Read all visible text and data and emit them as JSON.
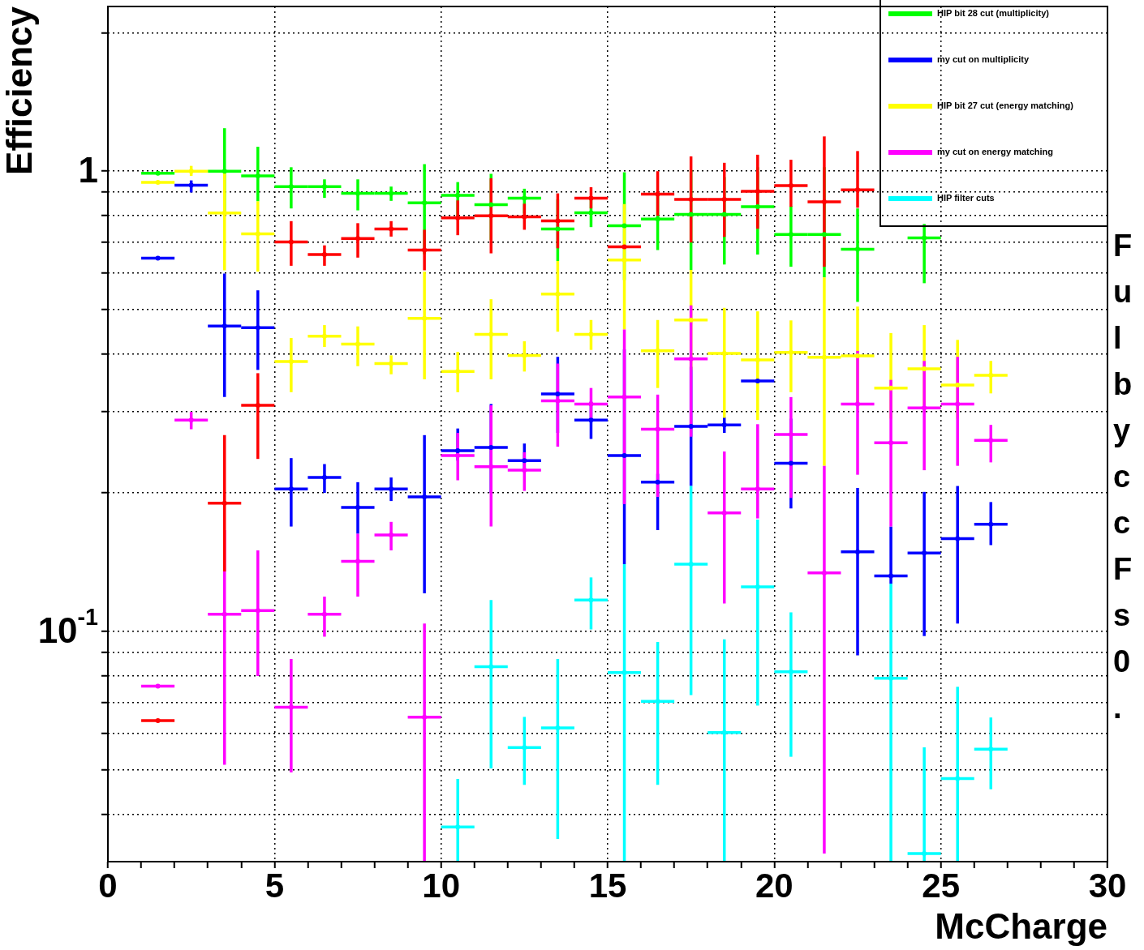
{
  "chart_data": {
    "type": "scatter",
    "xlabel": "McCharge",
    "ylabel": "Efficiency",
    "x": [
      1.5,
      2.5,
      3.5,
      4.5,
      5.5,
      6.5,
      7.5,
      8.5,
      9.5,
      10.5,
      11.5,
      12.5,
      13.5,
      14.5,
      15.5,
      16.5,
      17.5,
      18.5,
      19.5,
      20.5,
      21.5,
      22.5,
      23.5,
      24.5,
      25.5,
      26.5
    ],
    "series": [
      {
        "name": "HIP bit 28 cut (multiplicity)",
        "color": "#00ff00",
        "values": [
          0.99,
          null,
          1.0,
          0.977,
          0.926,
          0.926,
          0.895,
          0.895,
          0.854,
          0.886,
          0.846,
          0.874,
          0.749,
          0.812,
          0.761,
          0.787,
          0.806,
          0.806,
          0.837,
          0.729,
          0.729,
          0.677,
          null,
          0.716,
          null,
          null
        ],
        "errors": [
          null,
          null,
          [
            0.81,
            1.24
          ],
          [
            0.86,
            1.13
          ],
          [
            0.83,
            1.02
          ],
          [
            0.875,
            0.96
          ],
          [
            0.822,
            0.96
          ],
          [
            0.862,
            0.926
          ],
          [
            0.66,
            1.036
          ],
          [
            0.798,
            0.947
          ],
          [
            0.708,
            0.987
          ],
          [
            0.809,
            0.916
          ],
          [
            0.638,
            0.868
          ],
          [
            0.756,
            0.865
          ],
          [
            0.58,
            0.995
          ],
          [
            0.674,
            0.889
          ],
          [
            0.61,
            1.007
          ],
          [
            0.627,
            0.971
          ],
          [
            0.659,
            1.02
          ],
          [
            0.62,
            0.84
          ],
          [
            0.588,
            1.02
          ],
          [
            0.52,
            0.83
          ],
          null,
          [
            0.571,
            0.768
          ],
          null,
          null
        ],
        "xerrors": [
          0.5,
          null,
          0.5,
          0.5,
          0.5,
          0.5,
          0.5,
          0.5,
          0.5,
          0.5,
          0.5,
          0.5,
          0.5,
          0.5,
          0.5,
          0.5,
          0.5,
          0.5,
          0.5,
          0.5,
          0.5,
          0.5,
          null,
          0.5,
          null,
          null
        ]
      },
      {
        "name": "my cut on multiplicity",
        "color": "#0000ff",
        "values": [
          0.647,
          0.932,
          0.461,
          0.457,
          0.204,
          0.216,
          0.186,
          0.204,
          0.196,
          0.247,
          0.251,
          0.235,
          0.328,
          0.288,
          0.241,
          0.211,
          0.279,
          0.281,
          0.35,
          0.232,
          null,
          0.149,
          0.132,
          0.148,
          0.159,
          0.171
        ],
        "errors": [
          null,
          [
            0.899,
            0.955
          ],
          [
            0.323,
            0.599
          ],
          [
            0.37,
            0.551
          ],
          [
            0.169,
            0.238
          ],
          [
            0.2,
            0.231
          ],
          [
            0.163,
            0.211
          ],
          [
            0.192,
            0.216
          ],
          [
            0.121,
            0.267
          ],
          [
            0.235,
            0.276
          ],
          [
            0.2,
            0.312
          ],
          [
            0.226,
            0.256
          ],
          [
            0.27,
            0.395
          ],
          [
            0.262,
            0.316
          ],
          [
            0.14,
            0.41
          ],
          [
            0.166,
            0.22
          ],
          [
            0.207,
            0.376
          ],
          [
            0.27,
            0.292
          ],
          null,
          [
            0.185,
            0.29
          ],
          null,
          [
            0.0887,
            0.205
          ],
          [
            0.127,
            0.169
          ],
          [
            0.0977,
            0.201
          ],
          [
            0.104,
            0.207
          ],
          [
            0.154,
            0.191
          ]
        ],
        "xerrors": [
          0.5,
          0.5,
          0.5,
          0.5,
          0.5,
          0.5,
          0.5,
          0.5,
          0.5,
          0.5,
          0.5,
          0.5,
          0.5,
          0.5,
          0.5,
          0.5,
          0.5,
          0.5,
          0.5,
          0.5,
          null,
          0.5,
          0.5,
          0.5,
          0.5,
          0.5
        ]
      },
      {
        "name": "HIP bit 27 cut (energy matching)",
        "color": "#ffff00",
        "values": [
          0.946,
          1.0,
          0.811,
          0.731,
          0.386,
          0.438,
          0.421,
          0.382,
          0.479,
          0.367,
          0.442,
          0.398,
          0.541,
          0.442,
          0.641,
          0.407,
          0.475,
          0.402,
          0.389,
          0.404,
          0.394,
          0.397,
          0.338,
          0.372,
          0.343,
          0.36
        ],
        "errors": [
          null,
          [
            0.977,
            1.027
          ],
          [
            0.609,
            1.004
          ],
          [
            0.605,
            0.86
          ],
          [
            0.331,
            0.434
          ],
          [
            0.415,
            0.463
          ],
          [
            0.377,
            0.46
          ],
          [
            0.362,
            0.398
          ],
          [
            0.353,
            0.605
          ],
          [
            0.331,
            0.405
          ],
          [
            0.353,
            0.527
          ],
          [
            0.367,
            0.427
          ],
          [
            0.448,
            0.638
          ],
          [
            0.409,
            0.475
          ],
          [
            0.453,
            0.848
          ],
          [
            0.338,
            0.475
          ],
          [
            0.37,
            0.61
          ],
          [
            0.291,
            0.505
          ],
          [
            0.288,
            0.496
          ],
          [
            0.331,
            0.474
          ],
          [
            0.229,
            0.588
          ],
          [
            0.31,
            0.508
          ],
          [
            0.29,
            0.445
          ],
          [
            0.31,
            0.463
          ],
          [
            0.29,
            0.43
          ],
          [
            0.329,
            0.387
          ]
        ],
        "xerrors": [
          0.5,
          0.5,
          0.5,
          0.5,
          0.5,
          0.5,
          0.5,
          0.5,
          0.5,
          0.5,
          0.5,
          0.5,
          0.5,
          0.5,
          0.5,
          0.5,
          0.5,
          0.5,
          0.5,
          0.5,
          0.5,
          0.5,
          0.5,
          0.5,
          0.5,
          0.5
        ]
      },
      {
        "name": "my cut on energy matching",
        "color": "#ff00ff",
        "values": [
          0.076,
          0.288,
          0.109,
          0.111,
          0.0684,
          0.109,
          0.142,
          0.162,
          0.0651,
          0.241,
          0.228,
          0.224,
          0.317,
          0.312,
          0.323,
          0.275,
          0.391,
          0.181,
          0.204,
          0.268,
          0.134,
          0.312,
          0.257,
          0.306,
          0.312,
          0.26
        ],
        "errors": [
          null,
          [
            0.275,
            0.3
          ],
          [
            0.0513,
            0.166
          ],
          [
            0.08,
            0.15
          ],
          [
            0.0494,
            0.0871
          ],
          [
            0.0974,
            0.119
          ],
          [
            0.119,
            0.163
          ],
          [
            0.15,
            0.173
          ],
          [
            0.0316,
            0.104
          ],
          [
            0.213,
            0.27
          ],
          [
            0.169,
            0.31
          ],
          [
            0.202,
            0.245
          ],
          [
            0.252,
            0.382
          ],
          [
            0.288,
            0.338
          ],
          [
            0.189,
            0.453
          ],
          [
            0.196,
            0.327
          ],
          [
            0.265,
            0.511
          ],
          [
            0.115,
            0.246
          ],
          [
            0.176,
            0.282
          ],
          [
            0.195,
            0.323
          ],
          [
            0.0329,
            0.229
          ],
          [
            0.219,
            0.407
          ],
          [
            0.169,
            0.352
          ],
          [
            0.224,
            0.387
          ],
          [
            0.229,
            0.395
          ],
          [
            0.233,
            0.281
          ]
        ],
        "xerrors": [
          0.5,
          0.5,
          0.5,
          0.5,
          0.5,
          0.5,
          0.5,
          0.5,
          0.5,
          0.5,
          0.5,
          0.5,
          0.5,
          0.5,
          0.5,
          0.5,
          0.5,
          0.5,
          0.5,
          0.5,
          0.5,
          0.5,
          0.5,
          0.5,
          0.5,
          0.5
        ]
      },
      {
        "name": "HIP filter cuts",
        "color": "#00ffff",
        "values": [
          null,
          null,
          null,
          null,
          null,
          null,
          null,
          null,
          null,
          0.0376,
          0.0838,
          0.0559,
          0.0617,
          0.117,
          0.0814,
          0.0705,
          0.14,
          0.0603,
          0.125,
          0.0817,
          null,
          null,
          0.0791,
          0.0329,
          0.0479,
          0.0555
        ],
        "errors": [
          null,
          null,
          null,
          null,
          null,
          null,
          null,
          null,
          null,
          [
            0.0316,
            0.0478
          ],
          [
            0.0504,
            0.117
          ],
          [
            0.0464,
            0.0652
          ],
          [
            0.0354,
            0.0871
          ],
          [
            0.101,
            0.131
          ],
          [
            0.0316,
            0.14
          ],
          [
            0.0464,
            0.0948
          ],
          [
            0.0727,
            0.207
          ],
          [
            0.0316,
            0.0961
          ],
          [
            0.069,
            0.175
          ],
          [
            0.0534,
            0.11
          ],
          null,
          null,
          [
            0.0316,
            0.127
          ],
          [
            0.0316,
            0.056
          ],
          [
            0.0316,
            0.0758
          ],
          [
            0.0454,
            0.065
          ]
        ],
        "xerrors": [
          null,
          null,
          null,
          null,
          null,
          null,
          null,
          null,
          null,
          0.5,
          0.5,
          0.5,
          0.5,
          0.5,
          0.5,
          0.5,
          0.5,
          0.5,
          0.5,
          0.5,
          null,
          null,
          0.5,
          0.5,
          0.5,
          0.5
        ]
      },
      {
        "color": "#ff0000",
        "values": [
          0.064,
          null,
          0.19,
          0.31,
          0.702,
          0.659,
          0.714,
          0.749,
          0.674,
          0.792,
          0.8,
          0.796,
          0.78,
          0.874,
          0.685,
          0.892,
          0.868,
          0.868,
          0.904,
          0.93,
          0.858,
          0.911,
          null,
          null,
          null,
          null
        ],
        "errors": [
          null,
          null,
          [
            0.135,
            0.267
          ],
          [
            0.237,
            0.364
          ],
          [
            0.623,
            0.779
          ],
          [
            0.623,
            0.69
          ],
          [
            0.649,
            0.771
          ],
          [
            0.721,
            0.779
          ],
          [
            0.609,
            0.746
          ],
          [
            0.726,
            0.864
          ],
          [
            0.663,
            0.965
          ],
          [
            0.746,
            0.85
          ],
          [
            0.68,
            0.895
          ],
          [
            0.83,
            0.923
          ],
          null,
          [
            0.8,
            1.0
          ],
          [
            0.7,
            1.077
          ],
          [
            0.72,
            1.043
          ],
          [
            0.75,
            1.086
          ],
          [
            0.837,
            1.059
          ],
          [
            0.62,
            1.19
          ],
          [
            0.833,
            1.106
          ],
          null,
          null,
          null,
          null
        ],
        "xerrors": [
          0.5,
          null,
          0.5,
          0.5,
          0.5,
          0.5,
          0.5,
          0.5,
          0.5,
          0.5,
          0.5,
          0.5,
          0.5,
          0.5,
          0.5,
          0.5,
          0.5,
          0.5,
          0.5,
          0.5,
          0.5,
          0.5,
          null,
          null,
          null,
          null
        ]
      }
    ],
    "xlim": [
      0,
      30
    ],
    "ylim": [
      0.0316,
      2.28
    ],
    "xticks": [
      0,
      {
        "value": 1,
        "label": null
      },
      {
        "value": 2,
        "label": null
      },
      {
        "value": 3,
        "label": null
      },
      {
        "value": 4,
        "label": null
      },
      5,
      {
        "value": 6,
        "label": null
      },
      {
        "value": 7,
        "label": null
      },
      {
        "value": 8,
        "label": null
      },
      {
        "value": 9,
        "label": null
      },
      10,
      {
        "value": 11,
        "label": null
      },
      {
        "value": 12,
        "label": null
      },
      {
        "value": 13,
        "label": null
      },
      {
        "value": 14,
        "label": null
      },
      15,
      {
        "value": 16,
        "label": null
      },
      {
        "value": 17,
        "label": null
      },
      {
        "value": 18,
        "label": null
      },
      {
        "value": 19,
        "label": null
      },
      20,
      {
        "value": 21,
        "label": null
      },
      {
        "value": 22,
        "label": null
      },
      {
        "value": 23,
        "label": null
      },
      {
        "value": 24,
        "label": null
      },
      25,
      {
        "value": 26,
        "label": null
      },
      {
        "value": 27,
        "label": null
      },
      {
        "value": 28,
        "label": null
      },
      {
        "value": 29,
        "label": null
      },
      30
    ],
    "yticks": [
      {
        "value": 0.04,
        "label": null
      },
      {
        "value": 0.05,
        "label": null
      },
      {
        "value": 0.06,
        "label": null
      },
      {
        "value": 0.07,
        "label": null
      },
      {
        "value": 0.08,
        "label": null
      },
      {
        "value": 0.09,
        "label": null
      },
      {
        "value": 0.1,
        "label": "10$^{-1}$"
      },
      {
        "value": 0.2,
        "label": null
      },
      {
        "value": 0.3,
        "label": null
      },
      {
        "value": 0.4,
        "label": null
      },
      {
        "value": 0.5,
        "label": null
      },
      {
        "value": 0.6,
        "label": null
      },
      {
        "value": 0.7,
        "label": null
      },
      {
        "value": 0.8,
        "label": null
      },
      {
        "value": 0.9,
        "label": null
      },
      1,
      {
        "value": 2,
        "label": null
      }
    ],
    "log": "y",
    "grid": true,
    "legend": "top right",
    "marker": "circle",
    "annotations": [
      "F\nu\nl\nb\ny\nc\nc\nF\ns\n0\n."
    ]
  }
}
